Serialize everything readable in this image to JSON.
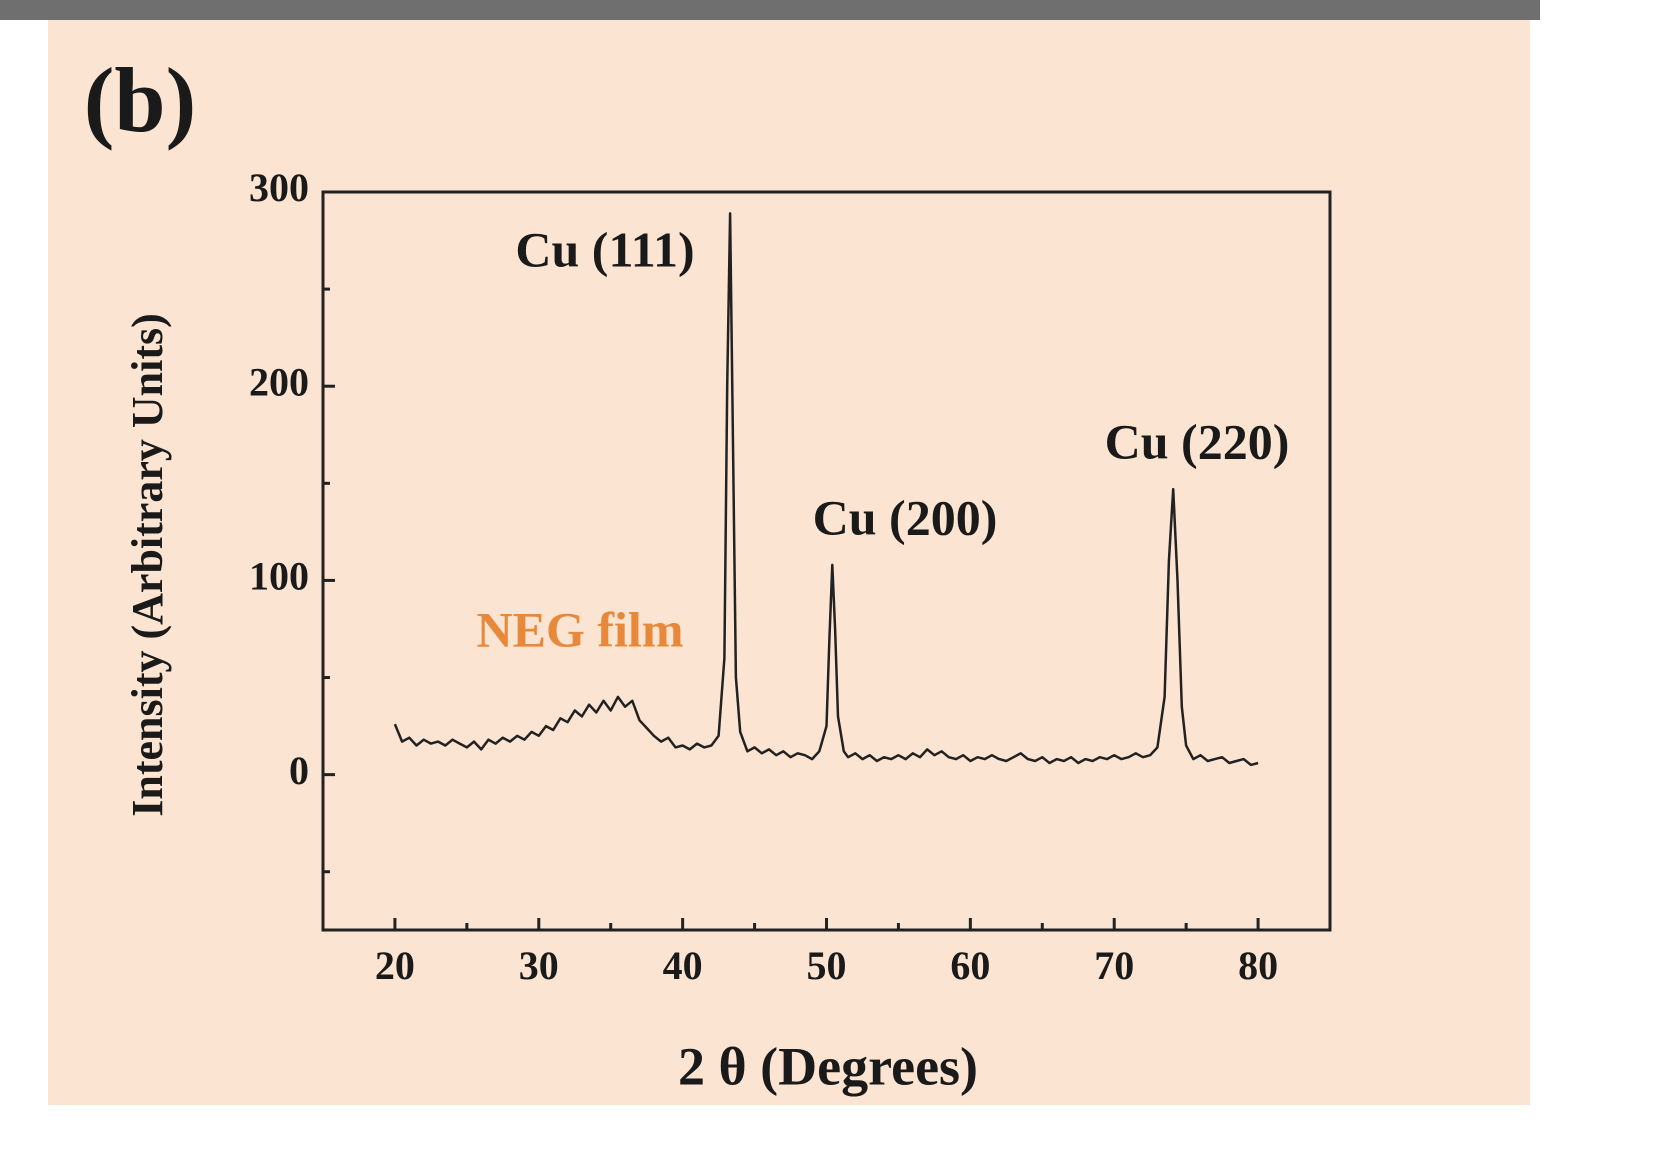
{
  "chart_data": {
    "type": "line",
    "panel_label": "(b)",
    "xlabel": "2 θ (Degrees)",
    "ylabel": "Intensity (Arbitrary Units)",
    "xlim": [
      15,
      85
    ],
    "ylim": [
      -80,
      300
    ],
    "xticks": [
      20,
      30,
      40,
      50,
      60,
      70,
      80
    ],
    "yticks": [
      0,
      100,
      200,
      300
    ],
    "xminor": [
      25,
      35,
      45,
      55,
      65,
      75
    ],
    "yminor": [
      -50,
      50,
      150,
      250
    ],
    "annotations": [
      "Cu (111)",
      "Cu (200)",
      "Cu (220)",
      "NEG film"
    ],
    "annotation_colors": [
      "#1a1a1a",
      "#1a1a1a",
      "#1a1a1a",
      "#e8883a"
    ],
    "x": [
      20,
      20.5,
      21,
      21.5,
      22,
      22.5,
      23,
      23.5,
      24,
      24.5,
      25,
      25.5,
      26,
      26.5,
      27,
      27.5,
      28,
      28.5,
      29,
      29.5,
      30,
      30.5,
      31,
      31.5,
      32,
      32.5,
      33,
      33.5,
      34,
      34.5,
      35,
      35.5,
      36,
      36.5,
      37,
      37.5,
      38,
      38.5,
      39,
      39.5,
      40,
      40.5,
      41,
      41.5,
      42,
      42.5,
      42.9,
      43.1,
      43.3,
      43.5,
      43.7,
      44,
      44.5,
      45,
      45.5,
      46,
      46.5,
      47,
      47.5,
      48,
      48.5,
      49,
      49.5,
      50,
      50.2,
      50.4,
      50.6,
      50.8,
      51.2,
      51.5,
      52,
      52.5,
      53,
      53.5,
      54,
      54.5,
      55,
      55.5,
      56,
      56.5,
      57,
      57.5,
      58,
      58.5,
      59,
      59.5,
      60,
      60.5,
      61,
      61.5,
      62,
      62.5,
      63,
      63.5,
      64,
      64.5,
      65,
      65.5,
      66,
      66.5,
      67,
      67.5,
      68,
      68.5,
      69,
      69.5,
      70,
      70.5,
      71,
      71.5,
      72,
      72.5,
      73,
      73.5,
      73.8,
      74.1,
      74.4,
      74.7,
      75,
      75.5,
      76,
      76.5,
      77,
      77.5,
      78,
      78.5,
      79,
      79.5,
      80
    ],
    "series": [
      {
        "color": "#222222",
        "values": [
          26,
          17,
          19,
          15,
          18,
          16,
          17,
          15,
          18,
          16,
          14,
          17,
          13,
          18,
          16,
          19,
          17,
          20,
          18,
          22,
          20,
          25,
          23,
          29,
          27,
          33,
          30,
          36,
          32,
          38,
          33,
          40,
          35,
          38,
          28,
          24,
          20,
          17,
          19,
          14,
          15,
          13,
          16,
          14,
          15,
          20,
          60,
          200,
          289,
          170,
          50,
          22,
          12,
          14,
          11,
          13,
          10,
          12,
          9,
          11,
          10,
          8,
          12,
          25,
          70,
          108,
          75,
          30,
          12,
          9,
          11,
          8,
          10,
          7,
          9,
          8,
          10,
          8,
          11,
          9,
          13,
          10,
          12,
          9,
          8,
          10,
          7,
          9,
          8,
          10,
          8,
          7,
          9,
          11,
          8,
          7,
          9,
          6,
          8,
          7,
          9,
          6,
          8,
          7,
          9,
          8,
          10,
          8,
          9,
          11,
          9,
          10,
          14,
          40,
          110,
          147,
          100,
          35,
          15,
          8,
          10,
          7,
          8,
          9,
          6,
          7,
          8,
          5,
          6
        ]
      }
    ]
  }
}
